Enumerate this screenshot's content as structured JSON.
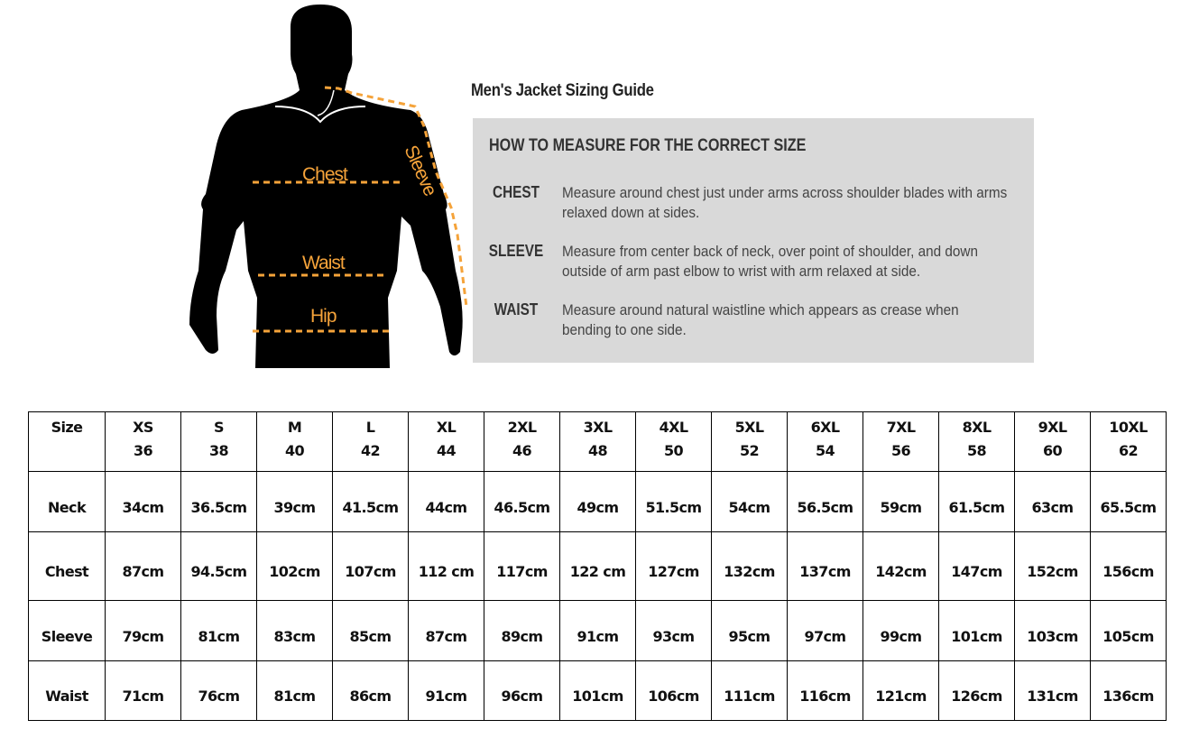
{
  "figure": {
    "labels": {
      "chest": "Chest",
      "waist": "Waist",
      "hip": "Hip",
      "sleeve": "Sleeve"
    },
    "accent": "#f5a33a"
  },
  "title": "Men's Jacket Sizing Guide",
  "guide": {
    "heading": "HOW TO MEASURE FOR THE CORRECT SIZE",
    "items": [
      {
        "term": "CHEST",
        "desc": "Measure around chest just under arms across shoulder blades with arms relaxed down at sides."
      },
      {
        "term": "SLEEVE",
        "desc": "Measure from center back of neck, over point of shoulder, and down outside of arm past elbow to wrist with arm relaxed at side."
      },
      {
        "term": "WAIST",
        "desc": "Measure around natural waistline which appears as crease when bending to one side."
      }
    ]
  },
  "table": {
    "header_label": "Size",
    "sizes": [
      [
        "XS",
        "36"
      ],
      [
        "S",
        "38"
      ],
      [
        "M",
        "40"
      ],
      [
        "L",
        "42"
      ],
      [
        "XL",
        "44"
      ],
      [
        "2XL",
        "46"
      ],
      [
        "3XL",
        "48"
      ],
      [
        "4XL",
        "50"
      ],
      [
        "5XL",
        "52"
      ],
      [
        "6XL",
        "54"
      ],
      [
        "7XL",
        "56"
      ],
      [
        "8XL",
        "58"
      ],
      [
        "9XL",
        "60"
      ],
      [
        "10XL",
        "62"
      ]
    ],
    "rows": [
      {
        "label": "Neck",
        "values": [
          "34cm",
          "36.5cm",
          "39cm",
          "41.5cm",
          "44cm",
          "46.5cm",
          "49cm",
          "51.5cm",
          "54cm",
          "56.5cm",
          "59cm",
          "61.5cm",
          "63cm",
          "65.5cm"
        ]
      },
      {
        "label": "Chest",
        "values": [
          "87cm",
          "94.5cm",
          "102cm",
          "107cm",
          "112 cm",
          "117cm",
          "122 cm",
          "127cm",
          "132cm",
          "137cm",
          "142cm",
          "147cm",
          "152cm",
          "156cm"
        ]
      },
      {
        "label": "Sleeve",
        "values": [
          "79cm",
          "81cm",
          "83cm",
          "85cm",
          "87cm",
          "89cm",
          "91cm",
          "93cm",
          "95cm",
          "97cm",
          "99cm",
          "101cm",
          "103cm",
          "105cm"
        ]
      },
      {
        "label": "Waist",
        "values": [
          "71cm",
          "76cm",
          "81cm",
          "86cm",
          "91cm",
          "96cm",
          "101cm",
          "106cm",
          "111cm",
          "116cm",
          "121cm",
          "126cm",
          "131cm",
          "136cm"
        ]
      }
    ]
  }
}
